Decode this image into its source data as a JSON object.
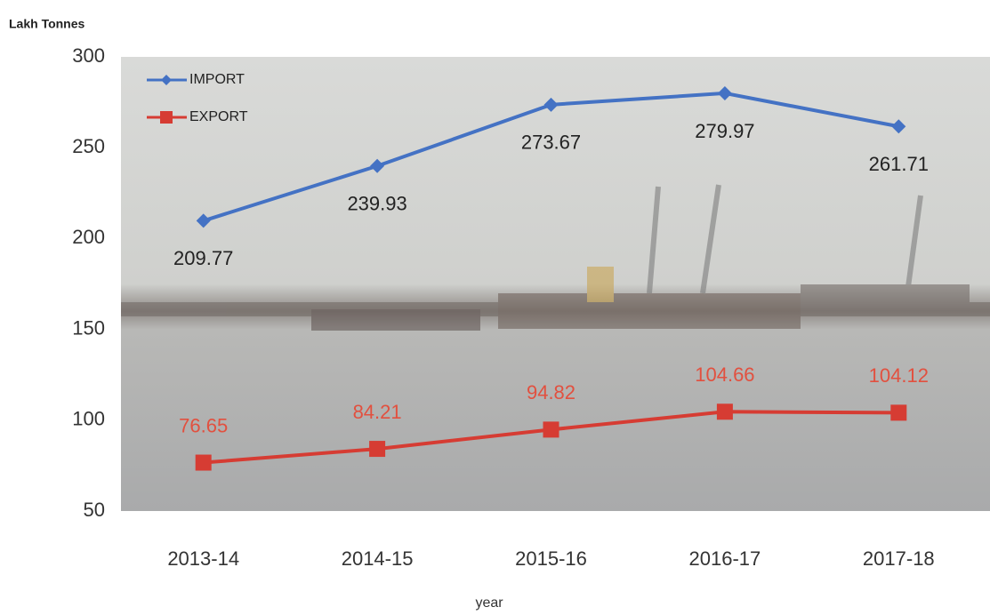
{
  "chart_data": {
    "type": "line",
    "y_label": "Lakh Tonnes",
    "x_label": "year",
    "categories": [
      "2013-14",
      "2014-15",
      "2015-16",
      "2016-17",
      "2017-18"
    ],
    "series": [
      {
        "name": "IMPORT",
        "color": "#4472c4",
        "marker": "diamond",
        "label_color": "#222222",
        "label_position": "below",
        "values": [
          209.77,
          239.93,
          273.67,
          279.97,
          261.71
        ]
      },
      {
        "name": "EXPORT",
        "color": "#d63c33",
        "marker": "square",
        "label_color": "#e2503f",
        "label_position": "above",
        "values": [
          76.65,
          84.21,
          94.82,
          104.66,
          104.12
        ]
      }
    ],
    "ylim": [
      50,
      300
    ],
    "yticks": [
      50,
      100,
      150,
      200,
      250,
      300
    ],
    "grid": false,
    "legend": "upper left"
  }
}
